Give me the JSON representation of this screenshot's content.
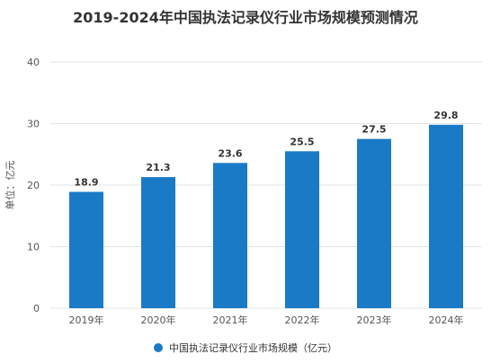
{
  "chart_data": {
    "type": "bar",
    "title": "2019-2024年中国执法记录仪行业市场规模预测情况",
    "ylabel": "单位：亿元",
    "categories": [
      "2019年",
      "2020年",
      "2021年",
      "2022年",
      "2023年",
      "2024年"
    ],
    "series": [
      {
        "name": "中国执法记录仪行业市场规模（亿元）",
        "values": [
          18.9,
          21.3,
          23.6,
          25.5,
          27.5,
          29.8
        ]
      }
    ],
    "yticks": [
      0,
      10,
      20,
      30,
      40
    ],
    "ylim": [
      0,
      40
    ],
    "grid": true,
    "legend_position": "bottom",
    "colors": {
      "bar": "#1a7ac6",
      "grid": "#e3e3e3"
    }
  }
}
